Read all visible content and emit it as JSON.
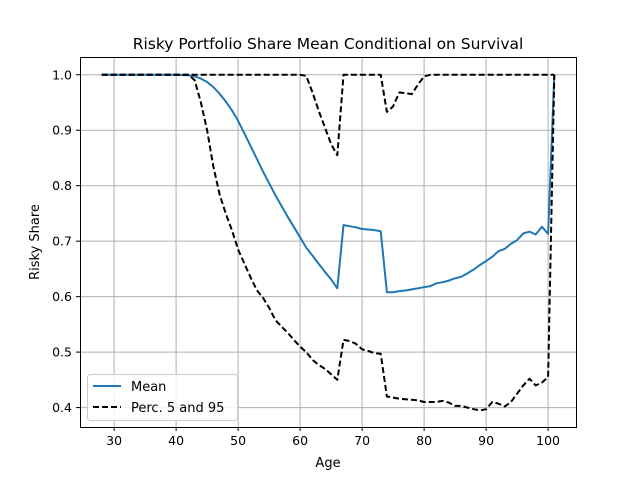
{
  "chart_data": {
    "type": "line",
    "title": "Risky Portfolio Share Mean Conditional on Survival",
    "xlabel": "Age",
    "ylabel": "Risky Share",
    "xlim": [
      24.5,
      104.5
    ],
    "ylim": [
      0.365,
      1.032
    ],
    "xticks": [
      30,
      40,
      50,
      60,
      70,
      80,
      90,
      100
    ],
    "yticks": [
      0.4,
      0.5,
      0.6,
      0.7,
      0.8,
      0.9,
      1.0
    ],
    "xtick_labels": [
      "30",
      "40",
      "50",
      "60",
      "70",
      "80",
      "90",
      "100"
    ],
    "ytick_labels": [
      "0.4",
      "0.5",
      "0.6",
      "0.7",
      "0.8",
      "0.9",
      "1.0"
    ],
    "grid": true,
    "legend_position": "lower left",
    "colors": {
      "mean": "#1f77b4",
      "percentiles": "#000000",
      "grid": "#b0b0b0"
    },
    "series": [
      {
        "name": "Mean",
        "style": "solid",
        "color": "#1f77b4",
        "x": [
          28,
          30,
          35,
          40,
          42,
          43,
          44,
          45,
          46,
          47,
          48,
          49,
          50,
          52,
          54,
          56,
          58,
          60,
          61,
          62,
          63,
          64,
          65,
          66,
          67,
          68,
          69,
          70,
          71,
          72,
          73,
          74,
          75,
          76,
          77,
          78,
          79,
          80,
          81,
          82,
          83,
          84,
          85,
          86,
          87,
          88,
          89,
          90,
          91,
          92,
          93,
          94,
          95,
          96,
          97,
          98,
          99,
          100,
          101
        ],
        "y": [
          1.0,
          1.0,
          1.0,
          1.0,
          0.999,
          0.997,
          0.993,
          0.987,
          0.978,
          0.966,
          0.952,
          0.936,
          0.917,
          0.872,
          0.826,
          0.783,
          0.744,
          0.707,
          0.688,
          0.674,
          0.659,
          0.645,
          0.631,
          0.615,
          0.729,
          0.727,
          0.725,
          0.722,
          0.721,
          0.72,
          0.718,
          0.608,
          0.608,
          0.61,
          0.611,
          0.613,
          0.615,
          0.617,
          0.619,
          0.624,
          0.626,
          0.629,
          0.633,
          0.636,
          0.642,
          0.649,
          0.657,
          0.664,
          0.672,
          0.682,
          0.686,
          0.695,
          0.702,
          0.714,
          0.717,
          0.712,
          0.726,
          0.713,
          1.0
        ]
      },
      {
        "name": "Perc. 5 and 95",
        "style": "dashed",
        "color": "#000000",
        "lines": [
          {
            "x": [
              28,
              30,
              35,
              40,
              42,
              43,
              44,
              45,
              46,
              47,
              48,
              49,
              50,
              51,
              52,
              53,
              54,
              55,
              56,
              57,
              58,
              59,
              60,
              61,
              62,
              63,
              64,
              65,
              66,
              67,
              68,
              69,
              70,
              71,
              72,
              73,
              74,
              75,
              76,
              77,
              78,
              79,
              80,
              81,
              82,
              83,
              84,
              85,
              86,
              87,
              88,
              89,
              90,
              91,
              92,
              93,
              94,
              95,
              96,
              97,
              98,
              99,
              100,
              101
            ],
            "y": [
              1.0,
              1.0,
              1.0,
              1.0,
              1.0,
              0.99,
              0.95,
              0.9,
              0.835,
              0.785,
              0.75,
              0.72,
              0.685,
              0.66,
              0.635,
              0.612,
              0.598,
              0.58,
              0.558,
              0.546,
              0.535,
              0.522,
              0.51,
              0.5,
              0.486,
              0.477,
              0.47,
              0.46,
              0.45,
              0.522,
              0.52,
              0.515,
              0.505,
              0.502,
              0.498,
              0.497,
              0.42,
              0.418,
              0.416,
              0.415,
              0.414,
              0.413,
              0.41,
              0.41,
              0.41,
              0.412,
              0.409,
              0.403,
              0.403,
              0.4,
              0.397,
              0.395,
              0.397,
              0.41,
              0.407,
              0.402,
              0.41,
              0.425,
              0.44,
              0.452,
              0.44,
              0.445,
              0.455,
              1.0
            ]
          },
          {
            "x": [
              28,
              30,
              35,
              40,
              45,
              50,
              55,
              60,
              61,
              62,
              63,
              64,
              65,
              66,
              67,
              68,
              69,
              70,
              71,
              72,
              73,
              74,
              75,
              76,
              77,
              78,
              79,
              80,
              81,
              85,
              90,
              95,
              100,
              101
            ],
            "y": [
              1.0,
              1.0,
              1.0,
              1.0,
              1.0,
              1.0,
              1.0,
              1.0,
              0.998,
              0.968,
              0.935,
              0.905,
              0.875,
              0.855,
              1.0,
              1.0,
              1.0,
              1.0,
              1.0,
              1.0,
              1.0,
              0.933,
              0.943,
              0.968,
              0.967,
              0.965,
              0.982,
              0.997,
              1.0,
              1.0,
              1.0,
              1.0,
              1.0,
              1.0
            ]
          }
        ]
      }
    ]
  }
}
